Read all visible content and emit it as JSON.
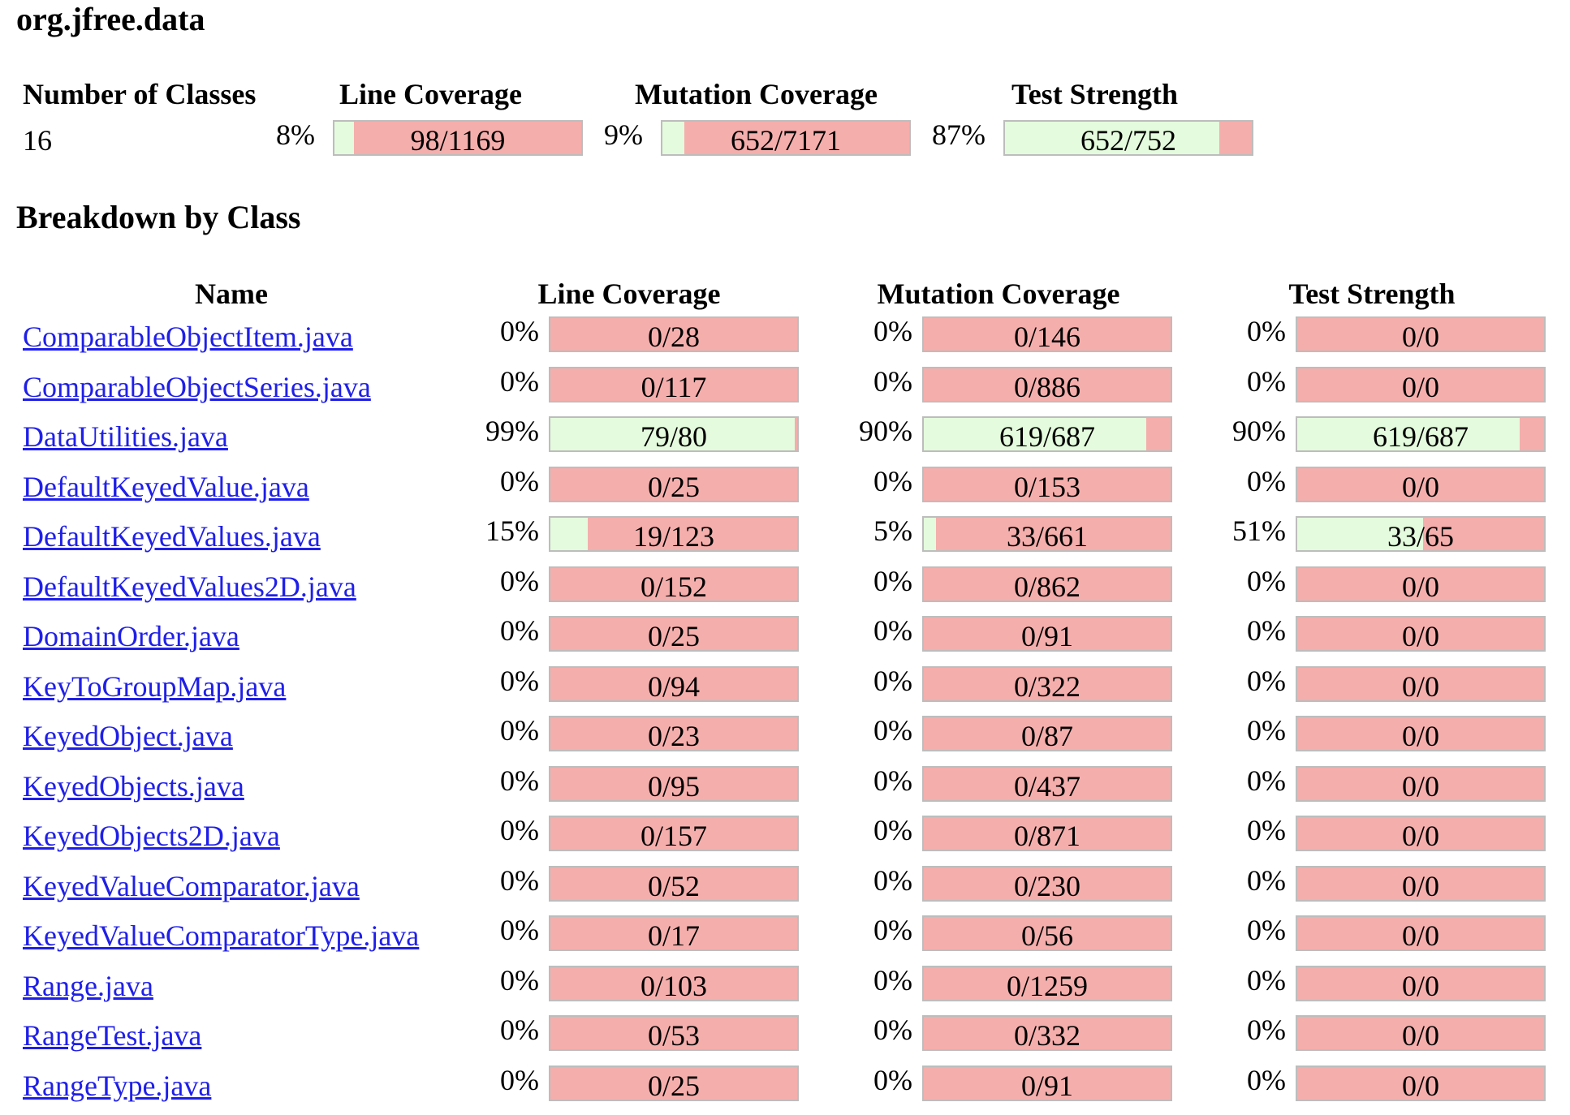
{
  "page_title": "org.jfree.data",
  "summary": {
    "headers": {
      "classes": "Number of Classes",
      "line": "Line Coverage",
      "mutation": "Mutation Coverage",
      "strength": "Test Strength"
    },
    "num_classes": "16",
    "line": {
      "pct": "8%",
      "label": "98/1169",
      "fraction": 0.08
    },
    "mutation": {
      "pct": "9%",
      "label": "652/7171",
      "fraction": 0.09
    },
    "strength": {
      "pct": "87%",
      "label": "652/752",
      "fraction": 0.87
    }
  },
  "breakdown": {
    "title": "Breakdown by Class",
    "headers": {
      "name": "Name",
      "line": "Line Coverage",
      "mutation": "Mutation Coverage",
      "strength": "Test Strength"
    },
    "rows": [
      {
        "name": "ComparableObjectItem.java",
        "line": {
          "pct": "0%",
          "label": "0/28",
          "fraction": 0
        },
        "mutation": {
          "pct": "0%",
          "label": "0/146",
          "fraction": 0
        },
        "strength": {
          "pct": "0%",
          "label": "0/0",
          "fraction": 0
        }
      },
      {
        "name": "ComparableObjectSeries.java",
        "line": {
          "pct": "0%",
          "label": "0/117",
          "fraction": 0
        },
        "mutation": {
          "pct": "0%",
          "label": "0/886",
          "fraction": 0
        },
        "strength": {
          "pct": "0%",
          "label": "0/0",
          "fraction": 0
        }
      },
      {
        "name": "DataUtilities.java",
        "line": {
          "pct": "99%",
          "label": "79/80",
          "fraction": 0.99
        },
        "mutation": {
          "pct": "90%",
          "label": "619/687",
          "fraction": 0.9
        },
        "strength": {
          "pct": "90%",
          "label": "619/687",
          "fraction": 0.9
        }
      },
      {
        "name": "DefaultKeyedValue.java",
        "line": {
          "pct": "0%",
          "label": "0/25",
          "fraction": 0
        },
        "mutation": {
          "pct": "0%",
          "label": "0/153",
          "fraction": 0
        },
        "strength": {
          "pct": "0%",
          "label": "0/0",
          "fraction": 0
        }
      },
      {
        "name": "DefaultKeyedValues.java",
        "line": {
          "pct": "15%",
          "label": "19/123",
          "fraction": 0.15
        },
        "mutation": {
          "pct": "5%",
          "label": "33/661",
          "fraction": 0.05
        },
        "strength": {
          "pct": "51%",
          "label": "33/65",
          "fraction": 0.51
        }
      },
      {
        "name": "DefaultKeyedValues2D.java",
        "line": {
          "pct": "0%",
          "label": "0/152",
          "fraction": 0
        },
        "mutation": {
          "pct": "0%",
          "label": "0/862",
          "fraction": 0
        },
        "strength": {
          "pct": "0%",
          "label": "0/0",
          "fraction": 0
        }
      },
      {
        "name": "DomainOrder.java",
        "line": {
          "pct": "0%",
          "label": "0/25",
          "fraction": 0
        },
        "mutation": {
          "pct": "0%",
          "label": "0/91",
          "fraction": 0
        },
        "strength": {
          "pct": "0%",
          "label": "0/0",
          "fraction": 0
        }
      },
      {
        "name": "KeyToGroupMap.java",
        "line": {
          "pct": "0%",
          "label": "0/94",
          "fraction": 0
        },
        "mutation": {
          "pct": "0%",
          "label": "0/322",
          "fraction": 0
        },
        "strength": {
          "pct": "0%",
          "label": "0/0",
          "fraction": 0
        }
      },
      {
        "name": "KeyedObject.java",
        "line": {
          "pct": "0%",
          "label": "0/23",
          "fraction": 0
        },
        "mutation": {
          "pct": "0%",
          "label": "0/87",
          "fraction": 0
        },
        "strength": {
          "pct": "0%",
          "label": "0/0",
          "fraction": 0
        }
      },
      {
        "name": "KeyedObjects.java",
        "line": {
          "pct": "0%",
          "label": "0/95",
          "fraction": 0
        },
        "mutation": {
          "pct": "0%",
          "label": "0/437",
          "fraction": 0
        },
        "strength": {
          "pct": "0%",
          "label": "0/0",
          "fraction": 0
        }
      },
      {
        "name": "KeyedObjects2D.java",
        "line": {
          "pct": "0%",
          "label": "0/157",
          "fraction": 0
        },
        "mutation": {
          "pct": "0%",
          "label": "0/871",
          "fraction": 0
        },
        "strength": {
          "pct": "0%",
          "label": "0/0",
          "fraction": 0
        }
      },
      {
        "name": "KeyedValueComparator.java",
        "line": {
          "pct": "0%",
          "label": "0/52",
          "fraction": 0
        },
        "mutation": {
          "pct": "0%",
          "label": "0/230",
          "fraction": 0
        },
        "strength": {
          "pct": "0%",
          "label": "0/0",
          "fraction": 0
        }
      },
      {
        "name": "KeyedValueComparatorType.java",
        "line": {
          "pct": "0%",
          "label": "0/17",
          "fraction": 0
        },
        "mutation": {
          "pct": "0%",
          "label": "0/56",
          "fraction": 0
        },
        "strength": {
          "pct": "0%",
          "label": "0/0",
          "fraction": 0
        }
      },
      {
        "name": "Range.java",
        "line": {
          "pct": "0%",
          "label": "0/103",
          "fraction": 0
        },
        "mutation": {
          "pct": "0%",
          "label": "0/1259",
          "fraction": 0
        },
        "strength": {
          "pct": "0%",
          "label": "0/0",
          "fraction": 0
        }
      },
      {
        "name": "RangeTest.java",
        "line": {
          "pct": "0%",
          "label": "0/53",
          "fraction": 0
        },
        "mutation": {
          "pct": "0%",
          "label": "0/332",
          "fraction": 0
        },
        "strength": {
          "pct": "0%",
          "label": "0/0",
          "fraction": 0
        }
      },
      {
        "name": "RangeType.java",
        "line": {
          "pct": "0%",
          "label": "0/25",
          "fraction": 0
        },
        "mutation": {
          "pct": "0%",
          "label": "0/91",
          "fraction": 0
        },
        "strength": {
          "pct": "0%",
          "label": "0/0",
          "fraction": 0
        }
      }
    ]
  },
  "colors": {
    "covered": "#e4fbdd",
    "uncovered": "#f4aeac",
    "bar_border": "#bdbdbd",
    "link": "#1f1fe8"
  }
}
